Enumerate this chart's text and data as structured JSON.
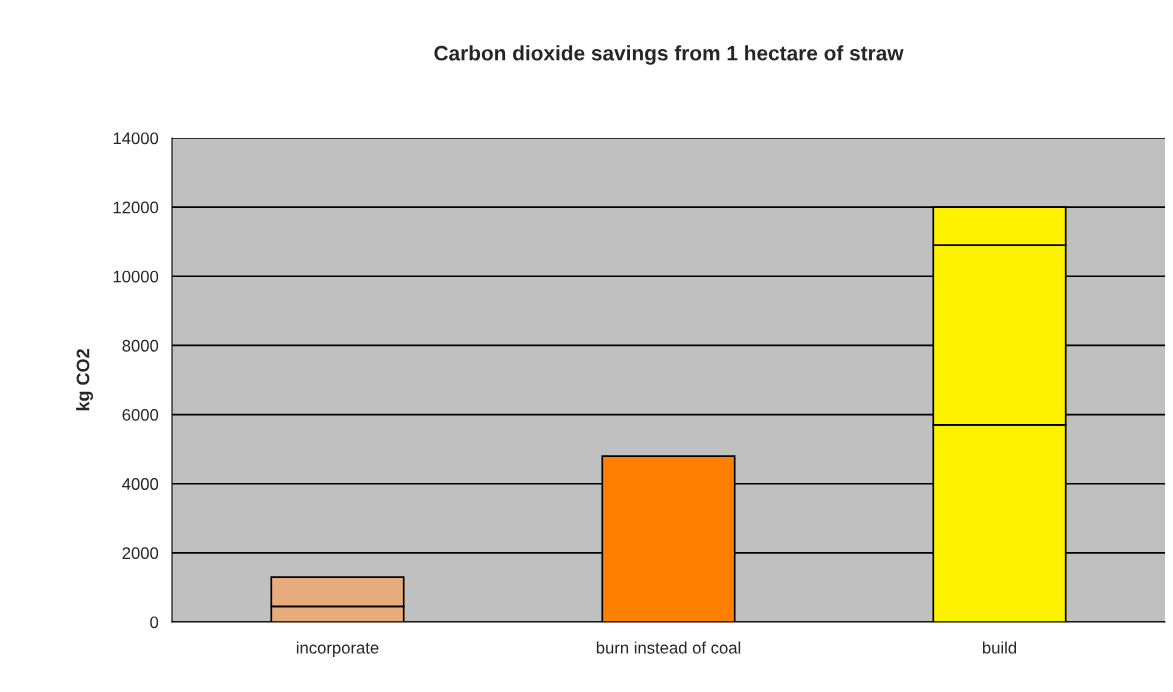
{
  "chart_data": {
    "type": "bar",
    "title": "Carbon dioxide savings from 1 hectare of straw",
    "ylabel": "kg CO2",
    "categories": [
      "incorporate",
      "burn instead of coal",
      "build"
    ],
    "stacked": true,
    "series": [
      {
        "colors": [
          "#e8ab7c",
          "#ff8000",
          "#fff200"
        ],
        "values": [
          450,
          4800,
          5700
        ]
      },
      {
        "colors": [
          "#e8ab7c",
          "#ff8000",
          "#fff200"
        ],
        "values": [
          850,
          null,
          5200
        ]
      },
      {
        "colors": [
          "#e8ab7c",
          "#ff8000",
          "#fff200"
        ],
        "values": [
          null,
          null,
          1100
        ]
      }
    ],
    "ylim": [
      0,
      14000
    ],
    "yticks": [
      0,
      2000,
      4000,
      6000,
      8000,
      10000,
      12000,
      14000
    ],
    "grid": "y",
    "legend": false
  }
}
